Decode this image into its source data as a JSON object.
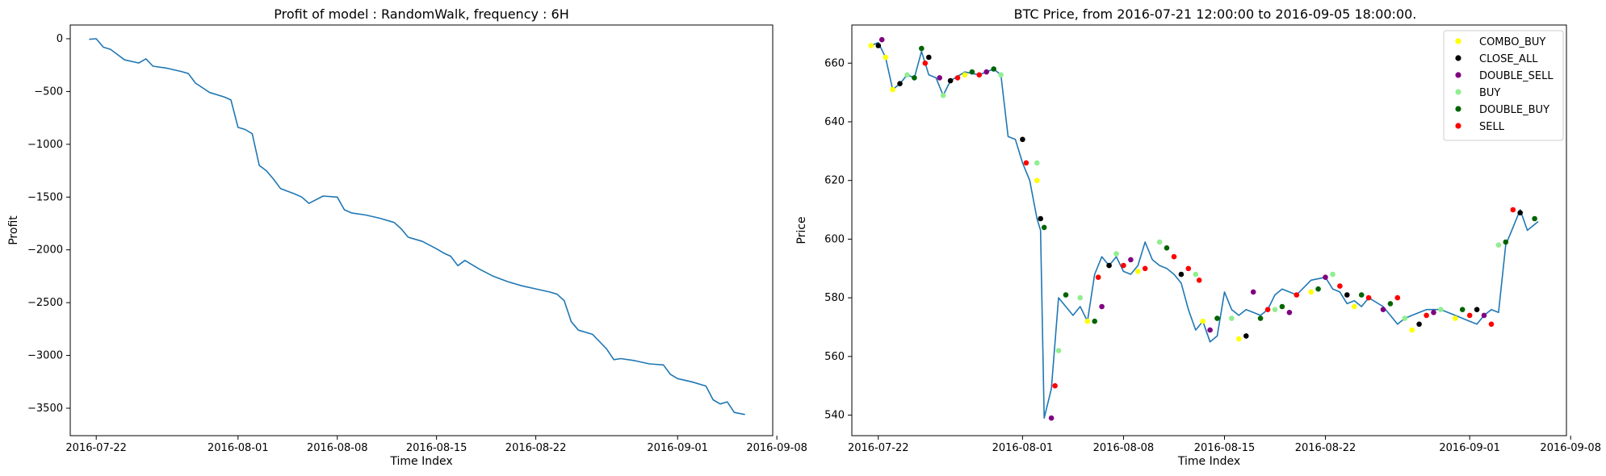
{
  "chart_data": [
    {
      "type": "line",
      "title": "Profit of model : RandomWalk, frequency : 6H",
      "xlabel": "Time Index",
      "ylabel": "Profit",
      "x_ticks": [
        "2016-07-22",
        "2016-08-01",
        "2016-08-08",
        "2016-08-15",
        "2016-08-22",
        "2016-09-01",
        "2016-09-08"
      ],
      "y_ticks": [
        0,
        -500,
        -1000,
        -1500,
        -2000,
        -2500,
        -3000,
        -3500
      ],
      "xlim": [
        "2016-07-20T04:00",
        "2016-09-07T17:00"
      ],
      "ylim": [
        -3760,
        130
      ],
      "grid": false,
      "colors": {
        "line": "#1f77b4"
      },
      "series": [
        {
          "x": [
            "2016-07-21T12:00",
            "2016-07-22T00:00",
            "2016-07-22T12:00",
            "2016-07-23T00:00",
            "2016-07-23T12:00",
            "2016-07-24T00:00",
            "2016-07-25T00:00",
            "2016-07-25T12:00",
            "2016-07-26T00:00",
            "2016-07-27T00:00",
            "2016-07-28T00:00",
            "2016-07-28T12:00",
            "2016-07-29T00:00",
            "2016-07-30T00:00",
            "2016-07-31T00:00",
            "2016-07-31T12:00",
            "2016-08-01T00:00",
            "2016-08-01T12:00",
            "2016-08-02T00:00",
            "2016-08-02T12:00",
            "2016-08-03T00:00",
            "2016-08-03T12:00",
            "2016-08-04T00:00",
            "2016-08-05T00:00",
            "2016-08-05T12:00",
            "2016-08-06T00:00",
            "2016-08-07T00:00",
            "2016-08-08T00:00",
            "2016-08-08T12:00",
            "2016-08-09T00:00",
            "2016-08-10T00:00",
            "2016-08-11T00:00",
            "2016-08-12T00:00",
            "2016-08-12T12:00",
            "2016-08-13T00:00",
            "2016-08-14T00:00",
            "2016-08-15T00:00",
            "2016-08-15T12:00",
            "2016-08-16T00:00",
            "2016-08-16T12:00",
            "2016-08-17T00:00",
            "2016-08-18T00:00",
            "2016-08-19T00:00",
            "2016-08-20T00:00",
            "2016-08-21T00:00",
            "2016-08-22T00:00",
            "2016-08-23T00:00",
            "2016-08-23T12:00",
            "2016-08-24T00:00",
            "2016-08-24T12:00",
            "2016-08-25T00:00",
            "2016-08-26T00:00",
            "2016-08-26T12:00",
            "2016-08-27T00:00",
            "2016-08-27T12:00",
            "2016-08-28T00:00",
            "2016-08-29T00:00",
            "2016-08-30T00:00",
            "2016-08-31T00:00",
            "2016-08-31T12:00",
            "2016-09-01T00:00",
            "2016-09-02T00:00",
            "2016-09-03T00:00",
            "2016-09-03T12:00",
            "2016-09-04T00:00",
            "2016-09-04T12:00",
            "2016-09-05T00:00",
            "2016-09-05T18:00"
          ],
          "y": [
            -5,
            0,
            -80,
            -100,
            -150,
            -200,
            -230,
            -190,
            -260,
            -280,
            -310,
            -330,
            -420,
            -510,
            -550,
            -580,
            -840,
            -860,
            -900,
            -1200,
            -1250,
            -1330,
            -1420,
            -1470,
            -1500,
            -1560,
            -1490,
            -1500,
            -1620,
            -1650,
            -1670,
            -1700,
            -1740,
            -1800,
            -1880,
            -1920,
            -1990,
            -2030,
            -2060,
            -2150,
            -2100,
            -2180,
            -2250,
            -2300,
            -2340,
            -2370,
            -2400,
            -2420,
            -2480,
            -2680,
            -2760,
            -2800,
            -2870,
            -2940,
            -3040,
            -3030,
            -3050,
            -3080,
            -3090,
            -3180,
            -3220,
            -3250,
            -3290,
            -3420,
            -3460,
            -3440,
            -3540,
            -3560
          ]
        }
      ]
    },
    {
      "type": "line",
      "title": "BTC Price, from 2016-07-21 12:00:00 to 2016-09-05 18:00:00.",
      "xlabel": "Time Index",
      "ylabel": "Price",
      "x_ticks": [
        "2016-07-22",
        "2016-08-01",
        "2016-08-08",
        "2016-08-15",
        "2016-08-22",
        "2016-09-01",
        "2016-09-08"
      ],
      "y_ticks": [
        540,
        560,
        580,
        600,
        620,
        640,
        660
      ],
      "xlim": [
        "2016-07-20T04:00",
        "2016-09-07T17:00"
      ],
      "ylim": [
        533,
        673
      ],
      "grid": false,
      "legend_position": "upper right",
      "colors": {
        "line": "#1f77b4"
      },
      "legend": [
        {
          "label": "COMBO_BUY",
          "color": "#ffff00"
        },
        {
          "label": "CLOSE_ALL",
          "color": "#000000"
        },
        {
          "label": "DOUBLE_SELL",
          "color": "#800080"
        },
        {
          "label": "BUY",
          "color": "#90ee90"
        },
        {
          "label": "DOUBLE_BUY",
          "color": "#006400"
        },
        {
          "label": "SELL",
          "color": "#ff0000"
        }
      ],
      "series": [
        {
          "x": [
            "2016-07-21T12:00",
            "2016-07-22T00:00",
            "2016-07-22T12:00",
            "2016-07-23T00:00",
            "2016-07-23T12:00",
            "2016-07-24T00:00",
            "2016-07-24T12:00",
            "2016-07-25T00:00",
            "2016-07-25T12:00",
            "2016-07-26T00:00",
            "2016-07-26T12:00",
            "2016-07-27T00:00",
            "2016-07-28T00:00",
            "2016-07-29T00:00",
            "2016-07-30T00:00",
            "2016-07-30T12:00",
            "2016-07-31T00:00",
            "2016-07-31T12:00",
            "2016-08-01T00:00",
            "2016-08-01T12:00",
            "2016-08-02T00:00",
            "2016-08-02T06:00",
            "2016-08-02T12:00",
            "2016-08-03T00:00",
            "2016-08-03T12:00",
            "2016-08-04T00:00",
            "2016-08-04T12:00",
            "2016-08-05T00:00",
            "2016-08-05T12:00",
            "2016-08-06T00:00",
            "2016-08-06T12:00",
            "2016-08-07T00:00",
            "2016-08-07T12:00",
            "2016-08-08T00:00",
            "2016-08-08T12:00",
            "2016-08-09T00:00",
            "2016-08-09T12:00",
            "2016-08-10T00:00",
            "2016-08-10T12:00",
            "2016-08-11T00:00",
            "2016-08-11T12:00",
            "2016-08-12T00:00",
            "2016-08-12T12:00",
            "2016-08-13T00:00",
            "2016-08-13T12:00",
            "2016-08-14T00:00",
            "2016-08-14T12:00",
            "2016-08-15T00:00",
            "2016-08-15T12:00",
            "2016-08-16T00:00",
            "2016-08-16T12:00",
            "2016-08-17T00:00",
            "2016-08-17T12:00",
            "2016-08-18T00:00",
            "2016-08-18T12:00",
            "2016-08-19T00:00",
            "2016-08-20T00:00",
            "2016-08-21T00:00",
            "2016-08-22T00:00",
            "2016-08-22T12:00",
            "2016-08-23T00:00",
            "2016-08-23T12:00",
            "2016-08-24T00:00",
            "2016-08-24T12:00",
            "2016-08-25T00:00",
            "2016-08-26T00:00",
            "2016-08-27T00:00",
            "2016-08-27T12:00",
            "2016-08-28T00:00",
            "2016-08-29T00:00",
            "2016-08-30T00:00",
            "2016-08-31T00:00",
            "2016-09-01T00:00",
            "2016-09-01T12:00",
            "2016-09-02T00:00",
            "2016-09-02T12:00",
            "2016-09-03T00:00",
            "2016-09-03T12:00",
            "2016-09-04T00:00",
            "2016-09-04T12:00",
            "2016-09-05T00:00",
            "2016-09-05T18:00"
          ],
          "y": [
            666,
            667,
            662,
            651,
            653,
            656,
            655,
            664,
            656,
            655,
            649,
            654,
            657,
            656,
            658,
            656,
            635,
            634,
            626,
            620,
            607,
            603,
            539,
            549,
            580,
            577,
            574,
            577,
            572,
            588,
            594,
            591,
            594,
            589,
            588,
            591,
            599,
            593,
            591,
            590,
            588,
            585,
            576,
            569,
            572,
            565,
            567,
            582,
            576,
            574,
            576,
            575,
            574,
            576,
            581,
            583,
            581,
            586,
            587,
            583,
            582,
            578,
            579,
            577,
            580,
            577,
            571,
            573,
            574,
            576,
            576,
            574,
            572,
            571,
            574,
            576,
            575,
            598,
            604,
            610,
            603,
            606
          ]
        }
      ],
      "markers": [
        {
          "series": "COMBO_BUY",
          "x": [
            "2016-07-21T12:00",
            "2016-07-22T12:00",
            "2016-07-23T00:00",
            "2016-07-28T00:00",
            "2016-08-02T00:00",
            "2016-08-05T12:00",
            "2016-08-09T00:00",
            "2016-08-13T12:00",
            "2016-08-16T00:00",
            "2016-08-21T00:00",
            "2016-08-24T00:00",
            "2016-08-28T00:00",
            "2016-08-31T00:00"
          ],
          "y": [
            666,
            662,
            651,
            656,
            620,
            572,
            589,
            572,
            566,
            582,
            577,
            569,
            573
          ]
        },
        {
          "series": "CLOSE_ALL",
          "x": [
            "2016-07-22T00:00",
            "2016-07-23T12:00",
            "2016-07-25T12:00",
            "2016-07-27T00:00",
            "2016-08-01T00:00",
            "2016-08-02T06:00",
            "2016-08-07T00:00",
            "2016-08-12T00:00",
            "2016-08-16T12:00",
            "2016-08-23T12:00",
            "2016-08-28T12:00",
            "2016-09-01T12:00",
            "2016-09-04T12:00"
          ],
          "y": [
            666,
            653,
            662,
            654,
            634,
            607,
            591,
            588,
            567,
            581,
            571,
            576,
            609
          ]
        },
        {
          "series": "DOUBLE_SELL",
          "x": [
            "2016-07-22T06:00",
            "2016-07-26T06:00",
            "2016-07-29T12:00",
            "2016-08-03T00:00",
            "2016-08-06T12:00",
            "2016-08-08T12:00",
            "2016-08-14T00:00",
            "2016-08-17T00:00",
            "2016-08-19T12:00",
            "2016-08-22T00:00",
            "2016-08-26T00:00",
            "2016-08-29T12:00",
            "2016-09-02T00:00"
          ],
          "y": [
            668,
            655,
            657,
            539,
            577,
            593,
            569,
            582,
            575,
            587,
            576,
            575,
            574
          ]
        },
        {
          "series": "BUY",
          "x": [
            "2016-07-24T00:00",
            "2016-07-26T12:00",
            "2016-07-30T12:00",
            "2016-08-02T00:00",
            "2016-08-03T12:00",
            "2016-08-05T00:00",
            "2016-08-07T12:00",
            "2016-08-10T12:00",
            "2016-08-13T00:00",
            "2016-08-15T12:00",
            "2016-08-18T12:00",
            "2016-08-22T12:00",
            "2016-08-27T12:00",
            "2016-08-30T00:00",
            "2016-09-03T00:00"
          ],
          "y": [
            656,
            649,
            656,
            626,
            562,
            580,
            595,
            599,
            588,
            573,
            576,
            588,
            573,
            576,
            598
          ]
        },
        {
          "series": "DOUBLE_BUY",
          "x": [
            "2016-07-24T12:00",
            "2016-07-25T00:00",
            "2016-07-28T12:00",
            "2016-07-30T00:00",
            "2016-08-02T12:00",
            "2016-08-04T00:00",
            "2016-08-06T00:00",
            "2016-08-11T00:00",
            "2016-08-14T12:00",
            "2016-08-17T12:00",
            "2016-08-19T00:00",
            "2016-08-21T12:00",
            "2016-08-24T12:00",
            "2016-08-26T12:00",
            "2016-08-31T12:00",
            "2016-09-03T12:00",
            "2016-09-05T12:00"
          ],
          "y": [
            655,
            665,
            657,
            658,
            604,
            581,
            572,
            597,
            573,
            573,
            577,
            583,
            581,
            578,
            576,
            599,
            607
          ]
        },
        {
          "series": "SELL",
          "x": [
            "2016-07-25T06:00",
            "2016-07-27T12:00",
            "2016-07-29T00:00",
            "2016-08-01T06:00",
            "2016-08-03T06:00",
            "2016-08-06T06:00",
            "2016-08-08T00:00",
            "2016-08-09T12:00",
            "2016-08-11T12:00",
            "2016-08-12T12:00",
            "2016-08-13T06:00",
            "2016-08-18T00:00",
            "2016-08-20T00:00",
            "2016-08-23T00:00",
            "2016-08-25T00:00",
            "2016-08-27T00:00",
            "2016-08-29T00:00",
            "2016-09-01T00:00",
            "2016-09-02T12:00",
            "2016-09-04T00:00"
          ],
          "y": [
            660,
            655,
            656,
            626,
            550,
            587,
            591,
            590,
            594,
            590,
            586,
            576,
            581,
            584,
            580,
            580,
            574,
            574,
            571,
            610
          ]
        }
      ]
    }
  ]
}
